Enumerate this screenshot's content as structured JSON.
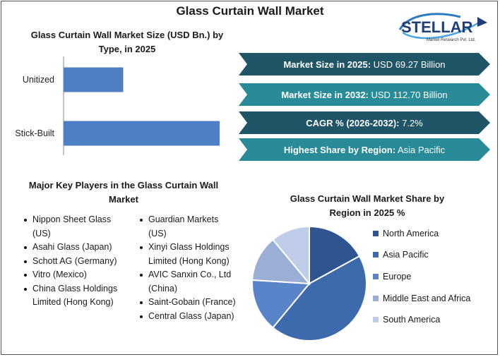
{
  "title": "Glass Curtain Wall Market",
  "logo": {
    "brand": "STELLAR",
    "tagline": "Market Research Pvt. Ltd."
  },
  "bar_chart_title": "Glass Curtain Wall Market Size (USD Bn.) by Type, in 2025",
  "stats": [
    {
      "label": "Market Size in 2025:",
      "value": "USD 69.27 Billion",
      "color": "#205467"
    },
    {
      "label": "Market Size in 2032:",
      "value": "USD 112.70 Billion",
      "color": "#2a8b98"
    },
    {
      "label": "CAGR % (2026-2032):",
      "value": "7.2%",
      "color": "#205467"
    },
    {
      "label": "Highest Share by Region:",
      "value": "Asia Pacific",
      "color": "#2a8b98"
    }
  ],
  "players_title": "Major Key Players in the Glass Curtain Wall Market",
  "players_left": [
    "Nippon Sheet Glass (US)",
    "Asahi Glass (Japan)",
    "Schott AG (Germany)",
    "Vitro (Mexico)",
    "China Glass Holdings Limited (Hong Kong)"
  ],
  "players_right": [
    "Guardian Markets (US)",
    "Xinyi Glass Holdings Limited (Hong Kong)",
    "AVIC Sanxin Co., Ltd (China)",
    "Saint-Gobain (France)",
    "Central Glass (Japan)"
  ],
  "pie_chart_title": "Glass Curtain Wall Market Share by Region in 2025 %",
  "chart_data": [
    {
      "type": "bar",
      "orientation": "horizontal",
      "title": "Glass Curtain Wall Market Size (USD Bn.) by Type, in 2025",
      "categories": [
        "Unitized",
        "Stick-Built"
      ],
      "values": [
        26,
        68
      ],
      "xlim": [
        0,
        80
      ],
      "color": "#4e7fc5",
      "grid": false,
      "legend": "none"
    },
    {
      "type": "pie",
      "title": "Glass Curtain Wall Market Share by Region in 2025 %",
      "labels": [
        "North America",
        "Asia Pacific",
        "Europe",
        "Middle East and Africa",
        "South America"
      ],
      "values": [
        17,
        44,
        15,
        13,
        11
      ],
      "colors": [
        "#2f5591",
        "#3d6aad",
        "#5a84c9",
        "#9aaed6",
        "#c0cde8"
      ],
      "legend": "right"
    }
  ]
}
